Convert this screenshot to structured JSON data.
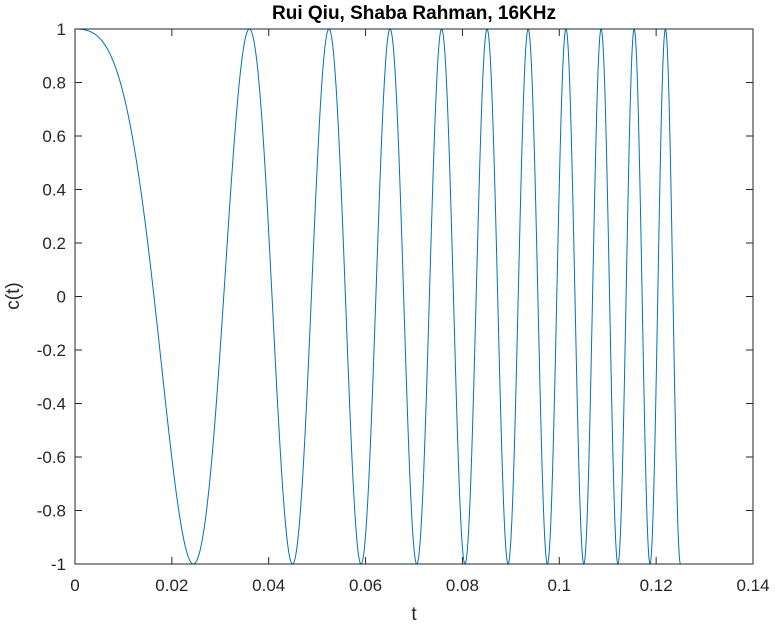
{
  "chart_data": {
    "type": "line",
    "title": "Rui Qiu, Shaba Rahman, 16KHz",
    "xlabel": "t",
    "ylabel": "c(t)",
    "xlim": [
      0,
      0.14
    ],
    "ylim": [
      -1,
      1
    ],
    "x_ticks": [
      0,
      0.02,
      0.04,
      0.06,
      0.08,
      0.1,
      0.12,
      0.14
    ],
    "x_tick_labels": [
      "0",
      "0.02",
      "0.04",
      "0.06",
      "0.08",
      "0.1",
      "0.12",
      "0.14"
    ],
    "y_ticks": [
      -1,
      -0.8,
      -0.6,
      -0.4,
      -0.2,
      0,
      0.2,
      0.4,
      0.6,
      0.8,
      1
    ],
    "y_tick_labels": [
      "-1",
      "-0.8",
      "-0.6",
      "-0.4",
      "-0.2",
      "0",
      "0.2",
      "0.4",
      "0.6",
      "0.8",
      "1"
    ],
    "grid": false,
    "line_color": "#0072BD",
    "series": [
      {
        "function": "cos",
        "phase_coefficients": [
          0,
          31.6,
          3968
        ],
        "t_start": 0,
        "t_end": 0.125,
        "samples_per_second": 16000
      }
    ]
  }
}
